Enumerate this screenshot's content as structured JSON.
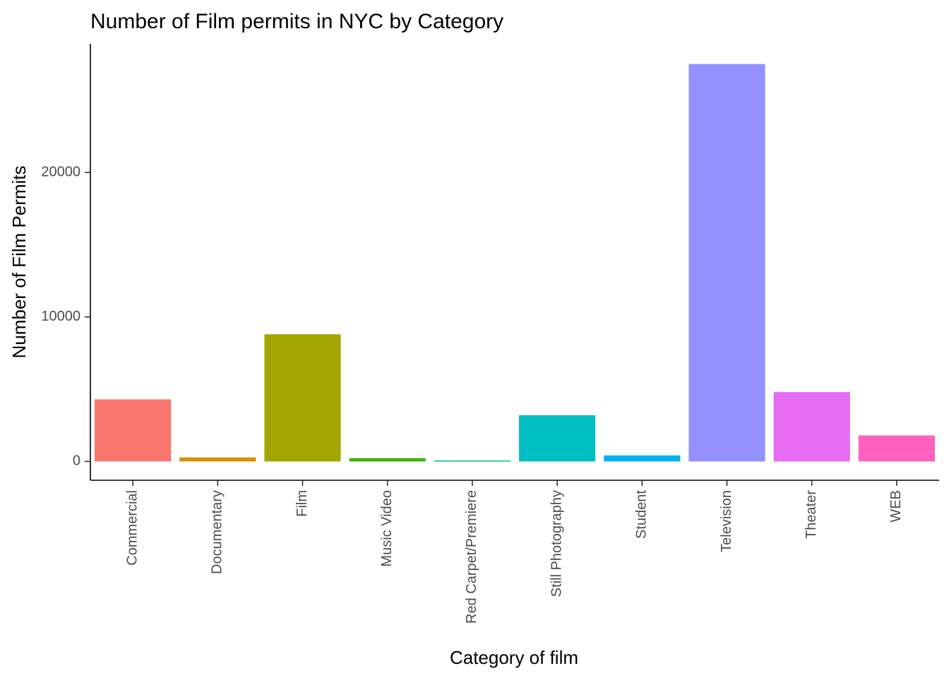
{
  "chart_data": {
    "type": "bar",
    "title": "Number of Film permits in NYC by Category",
    "xlabel": "Category of film",
    "ylabel": "Number of Film Permits",
    "categories": [
      "Commercial",
      "Documentary",
      "Film",
      "Music Video",
      "Red Carpet/Premiere",
      "Still Photography",
      "Student",
      "Television",
      "Theater",
      "WEB"
    ],
    "values": [
      4300,
      280,
      8800,
      230,
      70,
      3200,
      420,
      27500,
      4800,
      1800
    ],
    "colors": [
      "#F8766D",
      "#D89000",
      "#A3A500",
      "#39B600",
      "#00BF7D",
      "#00BFC4",
      "#00B0F6",
      "#9590FF",
      "#E76BF3",
      "#FF62BC"
    ],
    "yticks": [
      0,
      10000,
      20000
    ],
    "ytick_labels": [
      "0",
      "10000",
      "20000"
    ],
    "ylim": [
      -1300,
      28900
    ],
    "grid": false,
    "legend": "none"
  }
}
